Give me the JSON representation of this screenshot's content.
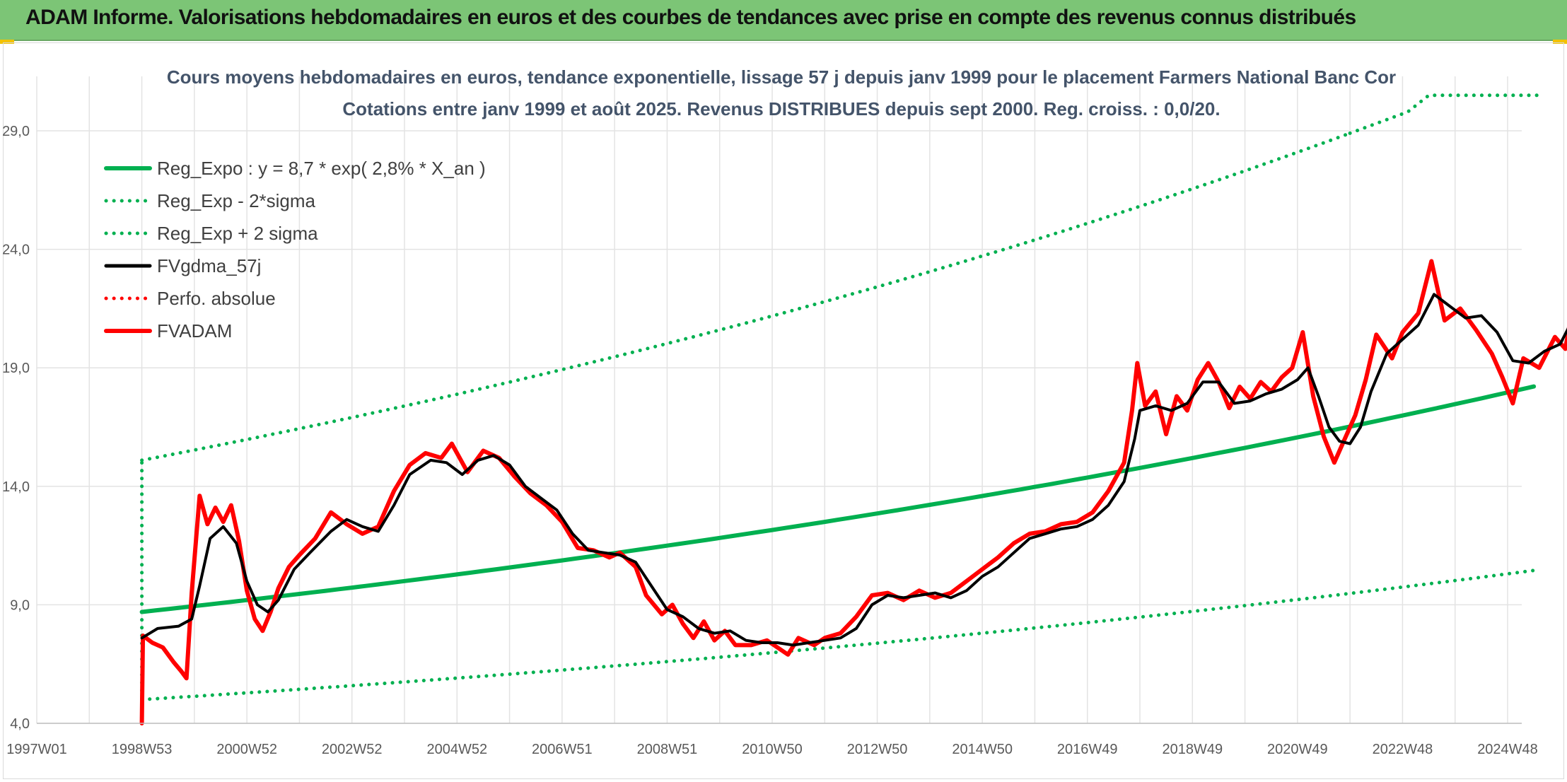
{
  "banner": {
    "title": "ADAM Informe. Valorisations hebdomadaires en euros et des courbes de tendances avec prise en compte des revenus connus distribués"
  },
  "chart_data": {
    "type": "line",
    "title": "Cours moyens hebdomadaires en euros, tendance exponentielle, lissage 57 j depuis janv 1999 pour le placement Farmers National Banc Cor",
    "subtitle": "Cotations entre janv 1999 et août 2025. Revenus DISTRIBUES depuis sept 2000. Reg. croiss. : 0,0/20.",
    "xlabel": "",
    "ylabel": "",
    "ylim": [
      4.0,
      31.0
    ],
    "yticks": [
      "29,0",
      "24,0",
      "19,0",
      "14,0",
      "9,0",
      "4,0"
    ],
    "ytick_values": [
      29,
      24,
      19,
      14,
      9,
      4
    ],
    "xticks": [
      "1997W01",
      "1998W53",
      "2000W52",
      "2002W52",
      "2004W52",
      "2006W51",
      "2008W51",
      "2010W50",
      "2012W50",
      "2014W50",
      "2016W49",
      "2018W49",
      "2020W49",
      "2022W48",
      "2024W48"
    ],
    "xtick_years": [
      1997.0,
      1999.0,
      2001.0,
      2003.0,
      2005.0,
      2007.0,
      2009.0,
      2011.0,
      2013.0,
      2015.0,
      2017.0,
      2019.0,
      2021.0,
      2023.0,
      2025.0
    ],
    "xlim_years": [
      1997.0,
      2025.67
    ],
    "grid": true,
    "legend_position": "top-left",
    "colors": {
      "green": "#00b050",
      "black": "#000000",
      "red": "#ff0000"
    },
    "series": [
      {
        "name": "Reg_Expo : y = 8,7 * exp( 2,8% *  X_an )",
        "style": "solid-thick",
        "color": "#00b050",
        "points": [
          [
            1999.0,
            8.7
          ],
          [
            2025.67,
            18.3
          ]
        ]
      },
      {
        "name": "Reg_Exp - 2*sigma",
        "style": "dotted",
        "color": "#00b050",
        "points": [
          [
            1999.0,
            5.0
          ],
          [
            2025.67,
            10.5
          ]
        ]
      },
      {
        "name": "Reg_Exp + 2 sigma",
        "style": "dotted",
        "color": "#00b050",
        "points": [
          [
            1999.0,
            15.1
          ],
          [
            2022.0,
            28.9
          ]
        ],
        "tail_points": [
          [
            2023.1,
            29.8
          ],
          [
            2023.5,
            30.5
          ],
          [
            2025.67,
            30.5
          ]
        ]
      },
      {
        "name": "FVgdma_57j",
        "style": "solid",
        "color": "#000000",
        "points": [
          [
            1999.0,
            7.6
          ],
          [
            1999.3,
            8.0
          ],
          [
            1999.7,
            8.1
          ],
          [
            1999.95,
            8.4
          ],
          [
            2000.1,
            9.8
          ],
          [
            2000.3,
            11.8
          ],
          [
            2000.55,
            12.3
          ],
          [
            2000.8,
            11.6
          ],
          [
            2001.0,
            10.0
          ],
          [
            2001.2,
            9.0
          ],
          [
            2001.4,
            8.7
          ],
          [
            2001.6,
            9.2
          ],
          [
            2001.9,
            10.5
          ],
          [
            2002.2,
            11.2
          ],
          [
            2002.6,
            12.1
          ],
          [
            2002.9,
            12.6
          ],
          [
            2003.2,
            12.3
          ],
          [
            2003.5,
            12.1
          ],
          [
            2003.8,
            13.2
          ],
          [
            2004.1,
            14.5
          ],
          [
            2004.5,
            15.1
          ],
          [
            2004.8,
            15.0
          ],
          [
            2005.1,
            14.5
          ],
          [
            2005.4,
            15.1
          ],
          [
            2005.7,
            15.3
          ],
          [
            2006.0,
            14.9
          ],
          [
            2006.3,
            14.0
          ],
          [
            2006.6,
            13.5
          ],
          [
            2006.9,
            13.0
          ],
          [
            2007.2,
            12.0
          ],
          [
            2007.5,
            11.3
          ],
          [
            2007.8,
            11.2
          ],
          [
            2008.1,
            11.1
          ],
          [
            2008.4,
            10.8
          ],
          [
            2008.7,
            9.8
          ],
          [
            2009.0,
            8.8
          ],
          [
            2009.3,
            8.5
          ],
          [
            2009.6,
            8.0
          ],
          [
            2009.9,
            7.8
          ],
          [
            2010.2,
            7.9
          ],
          [
            2010.5,
            7.5
          ],
          [
            2010.8,
            7.4
          ],
          [
            2011.1,
            7.4
          ],
          [
            2011.4,
            7.3
          ],
          [
            2011.7,
            7.4
          ],
          [
            2012.0,
            7.5
          ],
          [
            2012.3,
            7.6
          ],
          [
            2012.6,
            8.0
          ],
          [
            2012.9,
            9.0
          ],
          [
            2013.2,
            9.4
          ],
          [
            2013.5,
            9.3
          ],
          [
            2013.8,
            9.4
          ],
          [
            2014.1,
            9.5
          ],
          [
            2014.4,
            9.3
          ],
          [
            2014.7,
            9.6
          ],
          [
            2015.0,
            10.2
          ],
          [
            2015.3,
            10.6
          ],
          [
            2015.6,
            11.2
          ],
          [
            2015.9,
            11.8
          ],
          [
            2016.2,
            12.0
          ],
          [
            2016.5,
            12.2
          ],
          [
            2016.8,
            12.3
          ],
          [
            2017.1,
            12.6
          ],
          [
            2017.4,
            13.2
          ],
          [
            2017.7,
            14.2
          ],
          [
            2017.9,
            16.0
          ],
          [
            2018.0,
            17.2
          ],
          [
            2018.3,
            17.4
          ],
          [
            2018.6,
            17.2
          ],
          [
            2018.9,
            17.5
          ],
          [
            2019.2,
            18.4
          ],
          [
            2019.5,
            18.4
          ],
          [
            2019.8,
            17.5
          ],
          [
            2020.1,
            17.6
          ],
          [
            2020.4,
            17.9
          ],
          [
            2020.7,
            18.1
          ],
          [
            2021.0,
            18.5
          ],
          [
            2021.2,
            19.0
          ],
          [
            2021.4,
            17.8
          ],
          [
            2021.6,
            16.5
          ],
          [
            2021.8,
            15.9
          ],
          [
            2022.0,
            15.8
          ],
          [
            2022.2,
            16.5
          ],
          [
            2022.4,
            18.0
          ],
          [
            2022.7,
            19.6
          ],
          [
            2023.0,
            20.2
          ],
          [
            2023.3,
            20.8
          ],
          [
            2023.6,
            22.1
          ],
          [
            2023.9,
            21.6
          ],
          [
            2024.2,
            21.1
          ],
          [
            2024.5,
            21.2
          ],
          [
            2024.8,
            20.5
          ],
          [
            2025.1,
            19.3
          ],
          [
            2025.4,
            19.2
          ],
          [
            2025.7,
            19.7
          ],
          [
            2026.0,
            20.0
          ],
          [
            2026.3,
            21.3
          ],
          [
            2026.6,
            21.8
          ],
          [
            2026.9,
            21.3
          ],
          [
            2027.2,
            20.7
          ],
          [
            2027.5,
            20.5
          ]
        ]
      },
      {
        "name": "Perfo. absolue",
        "style": "dotted",
        "color": "#ff0000",
        "points": []
      },
      {
        "name": "FVADAM",
        "style": "solid-thick",
        "color": "#ff0000",
        "points": [
          [
            1999.0,
            4.0
          ],
          [
            1999.02,
            7.7
          ],
          [
            1999.2,
            7.4
          ],
          [
            1999.4,
            7.2
          ],
          [
            1999.6,
            6.6
          ],
          [
            1999.75,
            6.2
          ],
          [
            1999.85,
            5.9
          ],
          [
            1999.95,
            9.5
          ],
          [
            2000.1,
            13.6
          ],
          [
            2000.25,
            12.4
          ],
          [
            2000.4,
            13.1
          ],
          [
            2000.55,
            12.5
          ],
          [
            2000.7,
            13.2
          ],
          [
            2000.85,
            11.7
          ],
          [
            2001.0,
            9.6
          ],
          [
            2001.15,
            8.4
          ],
          [
            2001.3,
            7.9
          ],
          [
            2001.45,
            8.7
          ],
          [
            2001.6,
            9.7
          ],
          [
            2001.8,
            10.6
          ],
          [
            2002.0,
            11.1
          ],
          [
            2002.3,
            11.8
          ],
          [
            2002.6,
            12.9
          ],
          [
            2002.9,
            12.4
          ],
          [
            2003.2,
            12.0
          ],
          [
            2003.5,
            12.3
          ],
          [
            2003.8,
            13.8
          ],
          [
            2004.1,
            14.9
          ],
          [
            2004.4,
            15.4
          ],
          [
            2004.7,
            15.2
          ],
          [
            2004.9,
            15.8
          ],
          [
            2005.2,
            14.6
          ],
          [
            2005.5,
            15.5
          ],
          [
            2005.8,
            15.2
          ],
          [
            2006.1,
            14.4
          ],
          [
            2006.4,
            13.7
          ],
          [
            2006.7,
            13.2
          ],
          [
            2007.0,
            12.5
          ],
          [
            2007.3,
            11.4
          ],
          [
            2007.6,
            11.3
          ],
          [
            2007.9,
            11.0
          ],
          [
            2008.1,
            11.2
          ],
          [
            2008.4,
            10.6
          ],
          [
            2008.6,
            9.4
          ],
          [
            2008.9,
            8.6
          ],
          [
            2009.1,
            9.0
          ],
          [
            2009.3,
            8.2
          ],
          [
            2009.5,
            7.6
          ],
          [
            2009.7,
            8.3
          ],
          [
            2009.9,
            7.5
          ],
          [
            2010.1,
            7.9
          ],
          [
            2010.3,
            7.3
          ],
          [
            2010.6,
            7.3
          ],
          [
            2010.9,
            7.5
          ],
          [
            2011.1,
            7.2
          ],
          [
            2011.3,
            6.9
          ],
          [
            2011.5,
            7.6
          ],
          [
            2011.8,
            7.3
          ],
          [
            2012.0,
            7.6
          ],
          [
            2012.3,
            7.8
          ],
          [
            2012.6,
            8.5
          ],
          [
            2012.9,
            9.4
          ],
          [
            2013.2,
            9.5
          ],
          [
            2013.5,
            9.2
          ],
          [
            2013.8,
            9.6
          ],
          [
            2014.1,
            9.3
          ],
          [
            2014.4,
            9.5
          ],
          [
            2014.7,
            10.0
          ],
          [
            2015.0,
            10.5
          ],
          [
            2015.3,
            11.0
          ],
          [
            2015.6,
            11.6
          ],
          [
            2015.9,
            12.0
          ],
          [
            2016.2,
            12.1
          ],
          [
            2016.5,
            12.4
          ],
          [
            2016.8,
            12.5
          ],
          [
            2017.1,
            12.9
          ],
          [
            2017.4,
            13.8
          ],
          [
            2017.7,
            15.0
          ],
          [
            2017.85,
            17.2
          ],
          [
            2017.95,
            19.2
          ],
          [
            2018.1,
            17.4
          ],
          [
            2018.3,
            18.0
          ],
          [
            2018.5,
            16.2
          ],
          [
            2018.7,
            17.8
          ],
          [
            2018.9,
            17.2
          ],
          [
            2019.1,
            18.5
          ],
          [
            2019.3,
            19.2
          ],
          [
            2019.5,
            18.4
          ],
          [
            2019.7,
            17.3
          ],
          [
            2019.9,
            18.2
          ],
          [
            2020.1,
            17.7
          ],
          [
            2020.3,
            18.4
          ],
          [
            2020.5,
            18.0
          ],
          [
            2020.7,
            18.6
          ],
          [
            2020.9,
            19.0
          ],
          [
            2021.1,
            20.5
          ],
          [
            2021.3,
            17.8
          ],
          [
            2021.5,
            16.1
          ],
          [
            2021.7,
            15.0
          ],
          [
            2021.9,
            16.0
          ],
          [
            2022.1,
            17.0
          ],
          [
            2022.3,
            18.5
          ],
          [
            2022.5,
            20.4
          ],
          [
            2022.8,
            19.4
          ],
          [
            2023.0,
            20.5
          ],
          [
            2023.3,
            21.3
          ],
          [
            2023.55,
            23.5
          ],
          [
            2023.8,
            21.0
          ],
          [
            2024.1,
            21.5
          ],
          [
            2024.4,
            20.6
          ],
          [
            2024.7,
            19.6
          ],
          [
            2024.9,
            18.6
          ],
          [
            2025.1,
            17.5
          ],
          [
            2025.3,
            19.4
          ],
          [
            2025.6,
            19.0
          ],
          [
            2025.9,
            20.3
          ],
          [
            2026.1,
            19.8
          ],
          [
            2026.3,
            22.4
          ],
          [
            2026.5,
            23.0
          ],
          [
            2026.7,
            21.5
          ],
          [
            2026.9,
            20.0
          ],
          [
            2027.1,
            21.0
          ],
          [
            2027.3,
            20.3
          ],
          [
            2027.5,
            20.6
          ]
        ]
      }
    ]
  }
}
